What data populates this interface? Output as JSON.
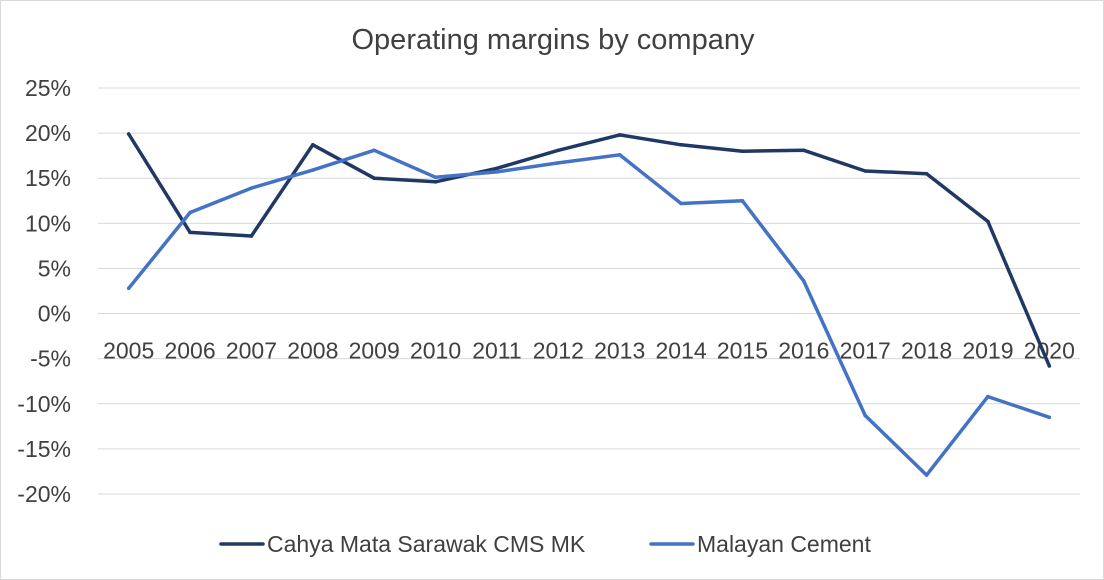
{
  "chart_data": {
    "type": "line",
    "title": "Operating margins by company",
    "xlabel": "",
    "ylabel": "",
    "categories": [
      "2005",
      "2006",
      "2007",
      "2008",
      "2009",
      "2010",
      "2011",
      "2012",
      "2013",
      "2014",
      "2015",
      "2016",
      "2017",
      "2018",
      "2019",
      "2020"
    ],
    "y_ticks": [
      "25%",
      "20%",
      "15%",
      "10%",
      "5%",
      "0%",
      "-5%",
      "-10%",
      "-15%",
      "-20%"
    ],
    "ylim": [
      -20,
      25
    ],
    "grid": true,
    "legend_position": "bottom",
    "series": [
      {
        "name": "Cahya Mata Sarawak CMS MK",
        "color": "#203864",
        "values": [
          19.9,
          9.0,
          8.6,
          18.7,
          15.0,
          14.6,
          16.1,
          18.1,
          19.8,
          18.7,
          18.0,
          18.1,
          15.8,
          15.5,
          10.2,
          -5.8
        ]
      },
      {
        "name": "Malayan Cement",
        "color": "#4472C4",
        "values": [
          2.8,
          11.2,
          13.9,
          15.9,
          18.1,
          15.1,
          15.7,
          16.7,
          17.6,
          12.2,
          12.5,
          3.6,
          -11.3,
          -17.9,
          -9.2,
          -11.5
        ]
      }
    ]
  }
}
